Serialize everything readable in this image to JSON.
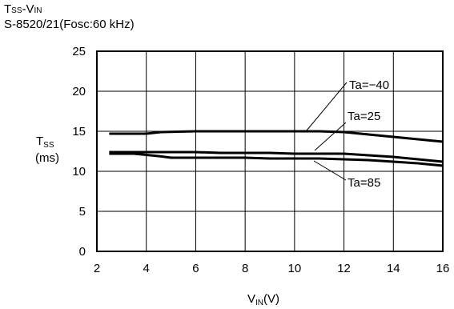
{
  "title": {
    "main": "T",
    "main_sub": "SS",
    "sep": "-V",
    "sep_sub": "IN"
  },
  "subtitle": "S-8520/21(Fosc:60 kHz)",
  "ylabel": {
    "main": "T",
    "sub": "SS",
    "unit": "(ms)"
  },
  "xlabel": {
    "main": "V",
    "sub": "IN",
    "unit": "(V)"
  },
  "chart_data": {
    "type": "line",
    "xlim": [
      2,
      16
    ],
    "ylim": [
      0,
      25
    ],
    "xticks": [
      2,
      4,
      6,
      8,
      10,
      12,
      14,
      16
    ],
    "yticks": [
      0,
      5,
      10,
      15,
      20,
      25
    ],
    "grid": true,
    "series": [
      {
        "name": "Ta=−40",
        "x": [
          2.5,
          4.0,
          4.6,
          6.0,
          8.0,
          10.0,
          11.0,
          12.0,
          13.0,
          14.0,
          15.0,
          16.0
        ],
        "y": [
          14.7,
          14.7,
          14.9,
          15.0,
          15.0,
          15.0,
          15.0,
          14.9,
          14.6,
          14.3,
          14.0,
          13.7
        ]
      },
      {
        "name": "Ta=25",
        "x": [
          2.5,
          4.0,
          5.0,
          6.0,
          7.0,
          8.0,
          9.0,
          10.0,
          11.0,
          12.0,
          13.0,
          14.0,
          15.0,
          16.0
        ],
        "y": [
          12.4,
          12.4,
          12.4,
          12.4,
          12.3,
          12.3,
          12.3,
          12.2,
          12.2,
          12.2,
          12.0,
          11.8,
          11.5,
          11.2
        ]
      },
      {
        "name": "Ta=85",
        "x": [
          2.5,
          3.5,
          4.5,
          5.0,
          6.0,
          7.0,
          8.0,
          9.0,
          10.0,
          11.0,
          12.0,
          13.0,
          14.0,
          15.0,
          16.0
        ],
        "y": [
          12.2,
          12.2,
          11.9,
          11.7,
          11.7,
          11.7,
          11.7,
          11.6,
          11.6,
          11.6,
          11.5,
          11.4,
          11.2,
          11.0,
          10.7
        ]
      }
    ],
    "annotations": [
      {
        "text": "Ta=−40",
        "series": 0
      },
      {
        "text": "Ta=25",
        "series": 1
      },
      {
        "text": "Ta=85",
        "series": 2
      }
    ]
  }
}
